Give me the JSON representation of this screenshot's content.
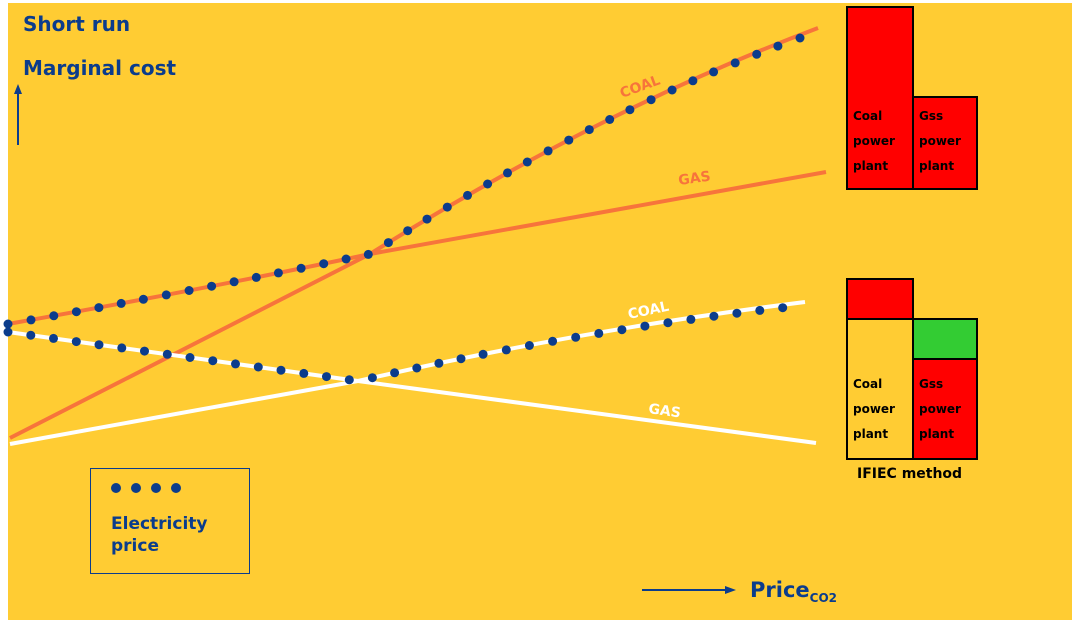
{
  "title": {
    "line1": "Short run",
    "line2": "Marginal cost"
  },
  "x_axis_label": "Price",
  "x_axis_subscript": "CO2",
  "legend": {
    "label": "Electricity price",
    "dots": 4
  },
  "method_label": "IFIEC method",
  "top_scenario": {
    "coal_label": "COAL",
    "gas_label": "GAS",
    "coal_plant": "Coal power plant",
    "gas_plant": "Gss power plant"
  },
  "bottom_scenario": {
    "coal_label": "COAL",
    "gas_label": "GAS",
    "coal_plant": "Coal power plant",
    "gas_plant": "Gss power plant"
  },
  "colors": {
    "background": "#FFCC33",
    "title": "#0B3C8C",
    "orange_line": "#F7743B",
    "white_line": "#FFFFFF",
    "dots": "#0B3C8C",
    "red_bar": "#FF0000",
    "green_bar": "#33CC33",
    "yellow_bar": "#FFCC33"
  }
}
